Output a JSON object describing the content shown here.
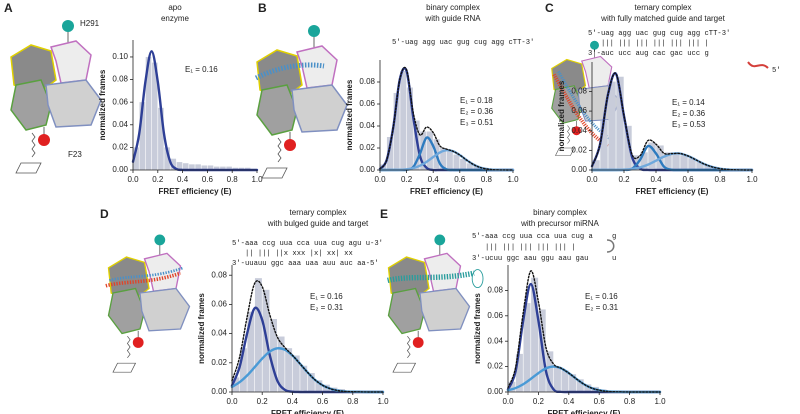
{
  "chart_data": [
    {
      "type": "histogram",
      "panel": "A",
      "title": [
        "apo",
        "enzyme"
      ],
      "sequence": [],
      "cartoon_labels": [
        "H291",
        "F23"
      ],
      "annotations": [
        {
          "text": "E₁ = 0.16",
          "color": "#2e3f96"
        }
      ],
      "xlabel": "FRET efficiency (E)",
      "ylabel": "normalized frames",
      "xlim": [
        0,
        1
      ],
      "xticks": [
        {
          "value": 0,
          "label": "0.0"
        },
        0.2,
        0.4,
        0.6,
        0.8,
        {
          "value": 1,
          "label": "1.0"
        }
      ],
      "ylim": [
        0,
        0.115
      ],
      "yticks": [
        {
          "value": 0,
          "label": "0.00"
        },
        {
          "value": 0.02,
          "label": "0.02"
        },
        {
          "value": 0.04,
          "label": "0.04"
        },
        {
          "value": 0.06,
          "label": "0.06"
        },
        {
          "value": 0.08,
          "label": "0.08"
        },
        {
          "value": 0.1,
          "label": "0.10"
        }
      ],
      "bins": [
        0,
        0.05,
        0.1,
        0.15,
        0.2,
        0.25,
        0.3,
        0.35,
        0.4,
        0.45,
        0.5,
        0.55,
        0.6,
        0.65,
        0.7,
        0.75,
        0.8,
        0.85,
        0.9,
        0.95,
        1
      ],
      "counts": [
        0.02,
        0.06,
        0.1,
        0.095,
        0.055,
        0.02,
        0.01,
        0.007,
        0.006,
        0.005,
        0.005,
        0.004,
        0.004,
        0.003,
        0.003,
        0.003,
        0.002,
        0.002,
        0.002,
        0.001
      ],
      "color": "#c8ccda",
      "x": [
        0,
        0.05,
        0.1,
        0.15,
        0.2,
        0.25,
        0.3,
        0.35,
        0.4,
        0.45,
        0.5,
        0.55,
        0.6,
        0.65,
        0.7,
        0.75,
        0.8,
        0.85,
        0.9,
        0.95,
        1
      ],
      "series": [
        {
          "color": "#2e3f96",
          "style": "solid",
          "values": [
            0.0073,
            0.032,
            0.078,
            0.105,
            0.078,
            0.032,
            0.0073,
            0.0009,
            0.0001,
            0,
            0,
            0,
            0,
            0,
            0,
            0,
            0,
            0,
            0,
            0,
            0
          ]
        }
      ]
    },
    {
      "type": "histogram",
      "panel": "B",
      "title": [
        "binary complex",
        "with guide RNA"
      ],
      "sequence": [
        {
          "text": "5'-uag agg uac gug cug agg cTT-3'",
          "color": "#4a90c8"
        }
      ],
      "annotations": [
        {
          "text": "E₁ = 0.18",
          "color": "#2e3f96"
        },
        {
          "text": "E₂ = 0.36",
          "color": "#2e7bbf"
        },
        {
          "text": "E₃ = 0.51",
          "color": "#6fa8dc"
        }
      ],
      "xlabel": "FRET efficiency (E)",
      "ylabel": "normalized frames",
      "xlim": [
        0,
        1
      ],
      "xticks": [
        {
          "value": 0,
          "label": "0.0"
        },
        0.2,
        0.4,
        0.6,
        0.8,
        {
          "value": 1,
          "label": "1.0"
        }
      ],
      "ylim": [
        0,
        0.1
      ],
      "yticks": [
        {
          "value": 0,
          "label": "0.00"
        },
        {
          "value": 0.02,
          "label": "0.02"
        },
        {
          "value": 0.04,
          "label": "0.04"
        },
        {
          "value": 0.06,
          "label": "0.06"
        },
        {
          "value": 0.08,
          "label": "0.08"
        }
      ],
      "bins": [
        0,
        0.05,
        0.1,
        0.15,
        0.2,
        0.25,
        0.3,
        0.35,
        0.4,
        0.45,
        0.5,
        0.55,
        0.6,
        0.65,
        0.7,
        0.75,
        0.8,
        0.85,
        0.9,
        0.95,
        1
      ],
      "counts": [
        0.005,
        0.03,
        0.07,
        0.09,
        0.075,
        0.045,
        0.035,
        0.035,
        0.028,
        0.02,
        0.017,
        0.014,
        0.01,
        0.006,
        0.004,
        0.002,
        0.001,
        0.001,
        0,
        0
      ],
      "color": "#c8ccda",
      "x": [
        0,
        0.05,
        0.1,
        0.15,
        0.2,
        0.25,
        0.3,
        0.35,
        0.4,
        0.45,
        0.5,
        0.55,
        0.6,
        0.65,
        0.7,
        0.75,
        0.8,
        0.85,
        0.9,
        0.95,
        1
      ],
      "series": [
        {
          "color": "#2e3f96",
          "style": "solid",
          "values": [
            0.001,
            0.009,
            0.039,
            0.083,
            0.09,
            0.048,
            0.013,
            0.002,
            0,
            0,
            0,
            0,
            0,
            0,
            0,
            0,
            0,
            0,
            0,
            0,
            0
          ]
        },
        {
          "color": "#2e7bbf",
          "style": "solid",
          "values": [
            0,
            0,
            0,
            0,
            0.0002,
            0.0027,
            0.0146,
            0.0294,
            0.0218,
            0.0059,
            0.0006,
            0,
            0,
            0,
            0,
            0,
            0,
            0,
            0,
            0,
            0
          ]
        },
        {
          "color": "#6fa8dc",
          "style": "solid",
          "values": [
            0,
            0,
            0.0001,
            0.0002,
            0.0006,
            0.0017,
            0.0039,
            0.0074,
            0.0118,
            0.0159,
            0.018,
            0.017,
            0.0136,
            0.0091,
            0.0052,
            0.0024,
            0.001,
            0.0003,
            0.0001,
            0,
            0
          ]
        },
        {
          "color": "#111111",
          "style": "dotted",
          "values": [
            0.001,
            0.009,
            0.039,
            0.083,
            0.091,
            0.052,
            0.032,
            0.039,
            0.034,
            0.022,
            0.019,
            0.017,
            0.0136,
            0.0091,
            0.0052,
            0.0024,
            0.001,
            0.0003,
            0.0001,
            0,
            0
          ]
        }
      ]
    },
    {
      "type": "histogram",
      "panel": "C",
      "title": [
        "ternary complex",
        "with fully matched guide and target"
      ],
      "sequence": [
        {
          "text": "5'-uag agg uac gug cug agg cTT-3'",
          "color": "#4a90c8"
        },
        {
          "text": "   ||| ||| ||| ||| ||| ||| |",
          "color": "#777777"
        },
        {
          "text": "3'-auc ucc aug cac gac ucc g",
          "color": "#d43f3a"
        },
        {
          "text": "5'",
          "color": "#d43f3a"
        }
      ],
      "annotations": [
        {
          "text": "E₁ = 0.14",
          "color": "#2e3f96"
        },
        {
          "text": "E₂ = 0.36",
          "color": "#2e7bbf"
        },
        {
          "text": "E₃ = 0.53",
          "color": "#6fa8dc"
        }
      ],
      "xlabel": "FRET efficiency (E)",
      "ylabel": "normalized frames",
      "xlim": [
        0,
        1
      ],
      "xticks": [
        {
          "value": 0,
          "label": "0.0"
        },
        0.2,
        0.4,
        0.6,
        0.8,
        {
          "value": 1,
          "label": "1.0"
        }
      ],
      "ylim": [
        0,
        0.11
      ],
      "yticks": [
        {
          "value": 0,
          "label": "0.00"
        },
        {
          "value": 0.02,
          "label": "0.02"
        },
        {
          "value": 0.04,
          "label": "0.04"
        },
        {
          "value": 0.06,
          "label": "0.06"
        },
        {
          "value": 0.08,
          "label": "0.08"
        }
      ],
      "bins": [
        0,
        0.05,
        0.1,
        0.15,
        0.2,
        0.25,
        0.3,
        0.35,
        0.4,
        0.45,
        0.5,
        0.55,
        0.6,
        0.65,
        0.7,
        0.75,
        0.8,
        0.85,
        0.9,
        0.95,
        1
      ],
      "counts": [
        0.01,
        0.05,
        0.09,
        0.095,
        0.045,
        0.015,
        0.018,
        0.028,
        0.025,
        0.018,
        0.016,
        0.015,
        0.012,
        0.008,
        0.005,
        0.003,
        0.001,
        0.001,
        0,
        0
      ],
      "color": "#c8ccda",
      "x": [
        0,
        0.05,
        0.1,
        0.15,
        0.2,
        0.25,
        0.3,
        0.35,
        0.4,
        0.45,
        0.5,
        0.55,
        0.6,
        0.65,
        0.7,
        0.75,
        0.8,
        0.85,
        0.9,
        0.95,
        1
      ],
      "series": [
        {
          "color": "#2e3f96",
          "style": "solid",
          "values": [
            0.0039,
            0.026,
            0.077,
            0.098,
            0.055,
            0.0135,
            0.0015,
            0.0001,
            0,
            0,
            0,
            0,
            0,
            0,
            0,
            0,
            0,
            0,
            0,
            0,
            0
          ]
        },
        {
          "color": "#2e7bbf",
          "style": "solid",
          "values": [
            0,
            0,
            0,
            0,
            0.0001,
            0.0013,
            0.0103,
            0.0244,
            0.0168,
            0.0034,
            0.0002,
            0,
            0,
            0,
            0,
            0,
            0,
            0,
            0,
            0,
            0
          ]
        },
        {
          "color": "#6fa8dc",
          "style": "solid",
          "values": [
            0,
            0,
            0,
            0.0001,
            0.0004,
            0.0011,
            0.0027,
            0.0055,
            0.0095,
            0.0136,
            0.0165,
            0.0168,
            0.0143,
            0.0103,
            0.0062,
            0.0032,
            0.0014,
            0.0005,
            0.0002,
            0,
            0
          ]
        },
        {
          "color": "#111111",
          "style": "dotted",
          "values": [
            0.0039,
            0.026,
            0.077,
            0.0981,
            0.0555,
            0.0159,
            0.0145,
            0.03,
            0.0263,
            0.017,
            0.0167,
            0.0168,
            0.0143,
            0.0103,
            0.0062,
            0.0032,
            0.0014,
            0.0005,
            0.0002,
            0,
            0
          ]
        }
      ]
    },
    {
      "type": "histogram",
      "panel": "D",
      "title": [
        "ternary complex",
        "with bulged guide and target"
      ],
      "sequence": [
        {
          "text": "5'-aaa ccg uua cca uua cug agu u-3'",
          "color": "#4a90c8"
        },
        {
          "text": "   || ||| ||x xxx |x| xx| xx",
          "color": "#777777"
        },
        {
          "text": "3'-uuauu ggc aaa uaa auu auc aa-5'",
          "color": "#d43f3a"
        }
      ],
      "annotations": [
        {
          "text": "E₁ = 0.16",
          "color": "#2e3f96"
        },
        {
          "text": "E₂ = 0.31",
          "color": "#2e7bbf"
        }
      ],
      "xlabel": "FRET efficiency (E)",
      "ylabel": "normalized frames",
      "xlim": [
        0,
        1
      ],
      "xticks": [
        {
          "value": 0,
          "label": "0.0"
        },
        0.2,
        0.4,
        0.6,
        0.8,
        {
          "value": 1,
          "label": "1.0"
        }
      ],
      "ylim": [
        0,
        0.087
      ],
      "yticks": [
        {
          "value": 0,
          "label": "0.00"
        },
        {
          "value": 0.02,
          "label": "0.02"
        },
        {
          "value": 0.04,
          "label": "0.04"
        },
        {
          "value": 0.06,
          "label": "0.06"
        },
        {
          "value": 0.08,
          "label": "0.08"
        }
      ],
      "bins": [
        0,
        0.05,
        0.1,
        0.15,
        0.2,
        0.25,
        0.3,
        0.35,
        0.4,
        0.45,
        0.5,
        0.55,
        0.6,
        0.65,
        0.7,
        0.75,
        0.8,
        0.85,
        0.9,
        0.95,
        1
      ],
      "counts": [
        0.01,
        0.03,
        0.055,
        0.078,
        0.07,
        0.05,
        0.038,
        0.03,
        0.025,
        0.018,
        0.013,
        0.008,
        0.005,
        0.003,
        0.002,
        0.001,
        0.001,
        0,
        0,
        0
      ],
      "color": "#c8ccda",
      "x": [
        0,
        0.05,
        0.1,
        0.15,
        0.2,
        0.25,
        0.3,
        0.35,
        0.4,
        0.45,
        0.5,
        0.55,
        0.6,
        0.65,
        0.7,
        0.75,
        0.8,
        0.85,
        0.9,
        0.95,
        1
      ],
      "series": [
        {
          "color": "#2e3f96",
          "style": "solid",
          "values": [
            0.0043,
            0.017,
            0.04,
            0.0574,
            0.0493,
            0.0253,
            0.0078,
            0.0015,
            0.0002,
            0,
            0,
            0,
            0,
            0,
            0,
            0,
            0,
            0,
            0,
            0,
            0
          ]
        },
        {
          "color": "#4a9ad6",
          "style": "solid",
          "values": [
            0.0035,
            0.0067,
            0.0113,
            0.017,
            0.0229,
            0.0277,
            0.0299,
            0.029,
            0.025,
            0.0194,
            0.0135,
            0.0083,
            0.0046,
            0.0023,
            0.001,
            0.0004,
            0.0002,
            0.0001,
            0,
            0,
            0
          ]
        },
        {
          "color": "#111111",
          "style": "dotted",
          "values": [
            0.0078,
            0.0237,
            0.0513,
            0.0744,
            0.0722,
            0.053,
            0.0377,
            0.0305,
            0.0252,
            0.0194,
            0.0135,
            0.0083,
            0.0046,
            0.0023,
            0.001,
            0.0004,
            0.0002,
            0.0001,
            0,
            0,
            0
          ]
        }
      ]
    },
    {
      "type": "histogram",
      "panel": "E",
      "title": [
        "binary complex",
        "with precursor miRNA"
      ],
      "sequence": [
        {
          "text": "5'-aaa ccg uua cca uua cug a",
          "color": "#2a9d9d"
        },
        {
          "text": "   ||| ||| ||| ||| ||| |",
          "color": "#777777"
        },
        {
          "text": "3'-ucuu ggc aau ggu aau gau",
          "color": "#2a9d9d"
        },
        {
          "text": "g",
          "color": "#2a9d9d"
        },
        {
          "text": "u",
          "color": "#2a9d9d"
        }
      ],
      "annotations": [
        {
          "text": "E₁ = 0.16",
          "color": "#2e3f96"
        },
        {
          "text": "E₂ = 0.31",
          "color": "#2e7bbf"
        }
      ],
      "xlabel": "FRET efficiency (E)",
      "ylabel": "normalized frames",
      "xlim": [
        0,
        1
      ],
      "xticks": [
        {
          "value": 0,
          "label": "0.0"
        },
        0.2,
        0.4,
        0.6,
        0.8,
        {
          "value": 1,
          "label": "1.0"
        }
      ],
      "ylim": [
        0,
        0.1
      ],
      "yticks": [
        {
          "value": 0,
          "label": "0.00"
        },
        {
          "value": 0.02,
          "label": "0.02"
        },
        {
          "value": 0.04,
          "label": "0.04"
        },
        {
          "value": 0.06,
          "label": "0.06"
        },
        {
          "value": 0.08,
          "label": "0.08"
        }
      ],
      "bins": [
        0,
        0.05,
        0.1,
        0.15,
        0.2,
        0.25,
        0.3,
        0.35,
        0.4,
        0.45,
        0.5,
        0.55,
        0.6,
        0.65,
        0.7,
        0.75,
        0.8,
        0.85,
        0.9,
        0.95,
        1
      ],
      "counts": [
        0.008,
        0.03,
        0.07,
        0.09,
        0.065,
        0.032,
        0.02,
        0.017,
        0.014,
        0.01,
        0.006,
        0.004,
        0.002,
        0.001,
        0.001,
        0,
        0,
        0,
        0,
        0
      ],
      "color": "#c8ccda",
      "x": [
        0,
        0.05,
        0.1,
        0.15,
        0.2,
        0.25,
        0.3,
        0.35,
        0.4,
        0.45,
        0.5,
        0.55,
        0.6,
        0.65,
        0.7,
        0.75,
        0.8,
        0.85,
        0.9,
        0.95,
        1
      ],
      "series": [
        {
          "color": "#2e3f96",
          "style": "solid",
          "values": [
            0.002,
            0.0163,
            0.0562,
            0.085,
            0.0562,
            0.0163,
            0.002,
            0.0001,
            0,
            0,
            0,
            0,
            0,
            0,
            0,
            0,
            0,
            0,
            0,
            0,
            0
          ]
        },
        {
          "color": "#4a9ad6",
          "style": "solid",
          "values": [
            0.0014,
            0.0031,
            0.0061,
            0.0103,
            0.0149,
            0.0186,
            0.02,
            0.0186,
            0.0149,
            0.0103,
            0.0061,
            0.0031,
            0.0014,
            0.0005,
            0.0002,
            0.0001,
            0,
            0,
            0,
            0,
            0
          ]
        },
        {
          "color": "#111111",
          "style": "dotted",
          "values": [
            0.0034,
            0.0194,
            0.0623,
            0.0953,
            0.0711,
            0.0349,
            0.022,
            0.0187,
            0.0149,
            0.0103,
            0.0061,
            0.0031,
            0.0014,
            0.0005,
            0.0002,
            0.0001,
            0,
            0,
            0,
            0,
            0
          ]
        }
      ]
    }
  ]
}
